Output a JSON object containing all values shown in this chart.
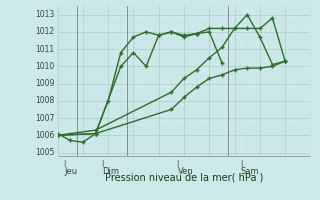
{
  "xlabel": "Pression niveau de la mer( hPa )",
  "bg_color": "#cce8e8",
  "grid_color_major": "#b0d0d0",
  "grid_color_minor": "#c8e4e4",
  "line_color": "#2d6e2d",
  "ylim": [
    1004.8,
    1013.5
  ],
  "yticks": [
    1005,
    1006,
    1007,
    1008,
    1009,
    1010,
    1011,
    1012,
    1013
  ],
  "day_labels": [
    "Jeu",
    "Dim",
    "Ven",
    "Sam"
  ],
  "day_positions": [
    0.5,
    3.5,
    9.5,
    14.5
  ],
  "vline_x": [
    1.5,
    5.5,
    13.5
  ],
  "total_points": 20,
  "series1_x": [
    0,
    1,
    2,
    3,
    4,
    5,
    6,
    7,
    8,
    9,
    10,
    11,
    12,
    13
  ],
  "series1_y": [
    1006.1,
    1005.7,
    1005.6,
    1006.1,
    1008.0,
    1010.8,
    1011.7,
    1012.0,
    1011.8,
    1012.0,
    1011.7,
    1011.9,
    1012.0,
    1010.2
  ],
  "series2_x": [
    0,
    3,
    5,
    6,
    7,
    8,
    9,
    10,
    11,
    12,
    13,
    14,
    15,
    16,
    17,
    18
  ],
  "series2_y": [
    1006.0,
    1006.1,
    1010.0,
    1010.8,
    1010.0,
    1011.8,
    1012.0,
    1011.8,
    1011.9,
    1012.2,
    1012.2,
    1012.2,
    1013.0,
    1011.7,
    1010.1,
    1010.3
  ],
  "series3_x": [
    0,
    3,
    9,
    10,
    11,
    12,
    13,
    14,
    15,
    16,
    17,
    18
  ],
  "series3_y": [
    1006.0,
    1006.3,
    1008.5,
    1009.3,
    1009.8,
    1010.5,
    1011.1,
    1012.2,
    1012.2,
    1012.2,
    1012.8,
    1010.3
  ],
  "series4_x": [
    0,
    3,
    9,
    10,
    11,
    12,
    13,
    14,
    15,
    16,
    17,
    18
  ],
  "series4_y": [
    1006.0,
    1006.1,
    1007.5,
    1008.2,
    1008.8,
    1009.3,
    1009.5,
    1009.8,
    1009.9,
    1009.9,
    1010.0,
    1010.3
  ]
}
